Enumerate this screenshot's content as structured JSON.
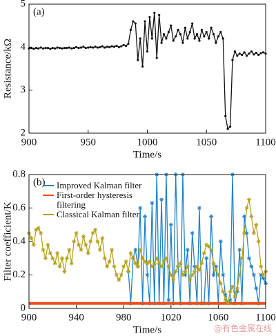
{
  "chart_data": [
    {
      "type": "line",
      "annotation": "(a)",
      "xlabel": "Time/s",
      "ylabel": "Resistance/kΩ",
      "x": [
        900,
        902,
        904,
        906,
        908,
        910,
        912,
        914,
        916,
        918,
        920,
        922,
        924,
        926,
        928,
        930,
        932,
        934,
        936,
        938,
        940,
        942,
        944,
        946,
        948,
        950,
        952,
        954,
        956,
        958,
        960,
        962,
        964,
        966,
        968,
        970,
        972,
        974,
        976,
        978,
        980,
        982,
        984,
        986,
        988,
        990,
        992,
        994,
        996,
        998,
        1000,
        1002,
        1004,
        1006,
        1008,
        1010,
        1012,
        1014,
        1016,
        1018,
        1020,
        1022,
        1024,
        1026,
        1028,
        1030,
        1032,
        1034,
        1036,
        1038,
        1040,
        1042,
        1044,
        1046,
        1048,
        1050,
        1052,
        1054,
        1056,
        1058,
        1060,
        1062,
        1064,
        1066,
        1068,
        1070,
        1072,
        1074,
        1076,
        1078,
        1080,
        1082,
        1084,
        1086,
        1088,
        1090,
        1092,
        1094,
        1096,
        1098,
        1100
      ],
      "xlim": [
        900,
        1100
      ],
      "xticks": [
        900,
        950,
        1000,
        1050,
        1100
      ],
      "ylim": [
        2,
        5
      ],
      "yticks": [
        2,
        3,
        4,
        5
      ],
      "series": [
        {
          "color": "#111111",
          "values": [
            3.97,
            3.98,
            3.96,
            3.98,
            3.97,
            3.99,
            3.97,
            3.98,
            3.98,
            3.96,
            3.98,
            3.97,
            3.99,
            3.98,
            3.97,
            3.98,
            3.98,
            3.99,
            3.97,
            3.98,
            4.0,
            3.98,
            3.99,
            4.01,
            3.98,
            3.99,
            4.0,
            3.99,
            4.01,
            3.99,
            4.0,
            4.02,
            3.99,
            4.01,
            4.0,
            4.02,
            4.01,
            4.03,
            4.0,
            4.02,
            4.05,
            4.03,
            4.08,
            4.4,
            4.6,
            4.55,
            3.7,
            4.2,
            3.55,
            4.6,
            3.9,
            4.7,
            4.2,
            4.8,
            3.75,
            4.75,
            4.1,
            4.3,
            4.2,
            4.35,
            4.5,
            4.15,
            4.25,
            4.4,
            4.3,
            4.1,
            4.45,
            4.2,
            4.35,
            4.55,
            4.2,
            4.3,
            4.15,
            4.4,
            4.25,
            4.35,
            4.2,
            4.45,
            4.3,
            4.1,
            4.25,
            4.35,
            4.2,
            2.4,
            2.1,
            2.15,
            3.7,
            3.9,
            3.8,
            3.85,
            3.82,
            3.88,
            3.8,
            3.85,
            3.9,
            3.83,
            3.87,
            3.82,
            3.86,
            3.88,
            3.85
          ]
        }
      ]
    },
    {
      "type": "line",
      "annotation": "(b)",
      "xlabel": "Time/s",
      "ylabel": "Filter coefficient/K",
      "legend": "upper left",
      "x": [
        900,
        902,
        904,
        906,
        908,
        910,
        912,
        914,
        916,
        918,
        920,
        922,
        924,
        926,
        928,
        930,
        932,
        934,
        936,
        938,
        940,
        942,
        944,
        946,
        948,
        950,
        952,
        954,
        956,
        958,
        960,
        962,
        964,
        966,
        968,
        970,
        972,
        974,
        976,
        978,
        980,
        982,
        984,
        986,
        988,
        990,
        992,
        994,
        996,
        998,
        1000,
        1002,
        1004,
        1006,
        1008,
        1010,
        1012,
        1014,
        1016,
        1018,
        1020,
        1022,
        1024,
        1026,
        1028,
        1030,
        1032,
        1034,
        1036,
        1038,
        1040,
        1042,
        1044,
        1046,
        1048,
        1050,
        1052,
        1054,
        1056,
        1058,
        1060,
        1062,
        1064,
        1066,
        1068,
        1070,
        1072,
        1074,
        1076,
        1078,
        1080,
        1082,
        1084,
        1086,
        1088,
        1090,
        1092,
        1094,
        1096,
        1098,
        1100
      ],
      "xlim": [
        900,
        1100
      ],
      "xticks": [
        900,
        940,
        980,
        1020,
        1060,
        1100
      ],
      "ylim": [
        0,
        0.8
      ],
      "yticks": [
        0,
        0.2,
        0.4,
        0.6,
        0.8
      ],
      "series": [
        {
          "name": "Improved Kalman filter",
          "color": "#1f82c8",
          "marker": "star",
          "values": [
            null,
            null,
            null,
            null,
            null,
            null,
            null,
            null,
            null,
            null,
            null,
            null,
            null,
            null,
            null,
            null,
            null,
            null,
            null,
            null,
            null,
            null,
            null,
            null,
            null,
            null,
            null,
            null,
            null,
            null,
            null,
            null,
            null,
            null,
            null,
            null,
            null,
            null,
            null,
            null,
            null,
            null,
            0.22,
            0.03,
            0.3,
            0.35,
            0.25,
            0.6,
            0.03,
            0.55,
            0.2,
            0.03,
            0.63,
            0.03,
            0.8,
            0.03,
            0.65,
            0.03,
            0.8,
            0.05,
            0.5,
            0.03,
            0.8,
            0.25,
            0.03,
            0.8,
            0.2,
            0.35,
            0.03,
            0.45,
            0.25,
            0.03,
            0.6,
            0.03,
            0.03,
            0.3,
            0.03,
            0.55,
            0.2,
            0.25,
            0.03,
            0.4,
            0.2,
            0.08,
            0.03,
            0.05,
            0.8,
            0.03,
            0.1,
            0.35,
            0.03,
            0.55,
            0.45,
            0.3,
            0.25,
            0.2,
            0.12,
            0.03,
            0.2,
            0.18,
            0.15
          ]
        },
        {
          "name": "First-order hysteresis filtering",
          "color": "#e8501e",
          "x": [
            900,
            1100
          ],
          "values": [
            0.03,
            0.03
          ]
        },
        {
          "name": "Classical Kalman filter",
          "color": "#b5a11c",
          "marker": "star",
          "values": [
            0.45,
            0.42,
            0.38,
            0.47,
            0.48,
            0.45,
            0.35,
            0.3,
            0.38,
            0.33,
            0.3,
            0.27,
            0.33,
            0.25,
            0.3,
            0.22,
            0.3,
            0.35,
            0.27,
            0.4,
            0.45,
            0.38,
            0.35,
            0.43,
            0.38,
            0.33,
            0.4,
            0.45,
            0.47,
            0.4,
            0.35,
            0.42,
            0.3,
            0.25,
            0.28,
            0.35,
            0.25,
            0.2,
            0.17,
            0.2,
            0.25,
            0.28,
            0.22,
            0.33,
            0.3,
            0.27,
            0.25,
            0.35,
            0.3,
            0.28,
            0.27,
            0.28,
            0.25,
            0.27,
            0.3,
            0.27,
            0.25,
            0.28,
            0.3,
            0.25,
            0.2,
            0.17,
            0.22,
            0.25,
            0.27,
            0.2,
            0.22,
            0.25,
            0.17,
            0.2,
            0.22,
            0.25,
            0.23,
            0.27,
            0.33,
            0.38,
            0.37,
            0.35,
            0.27,
            0.23,
            0.2,
            0.15,
            0.1,
            0.05,
            0.03,
            0.1,
            0.13,
            0.07,
            0.12,
            0.2,
            0.3,
            0.45,
            0.6,
            0.65,
            0.55,
            0.45,
            0.5,
            0.4,
            0.25,
            0.2,
            0.22
          ]
        }
      ]
    }
  ],
  "watermark": "@有色金属在线"
}
